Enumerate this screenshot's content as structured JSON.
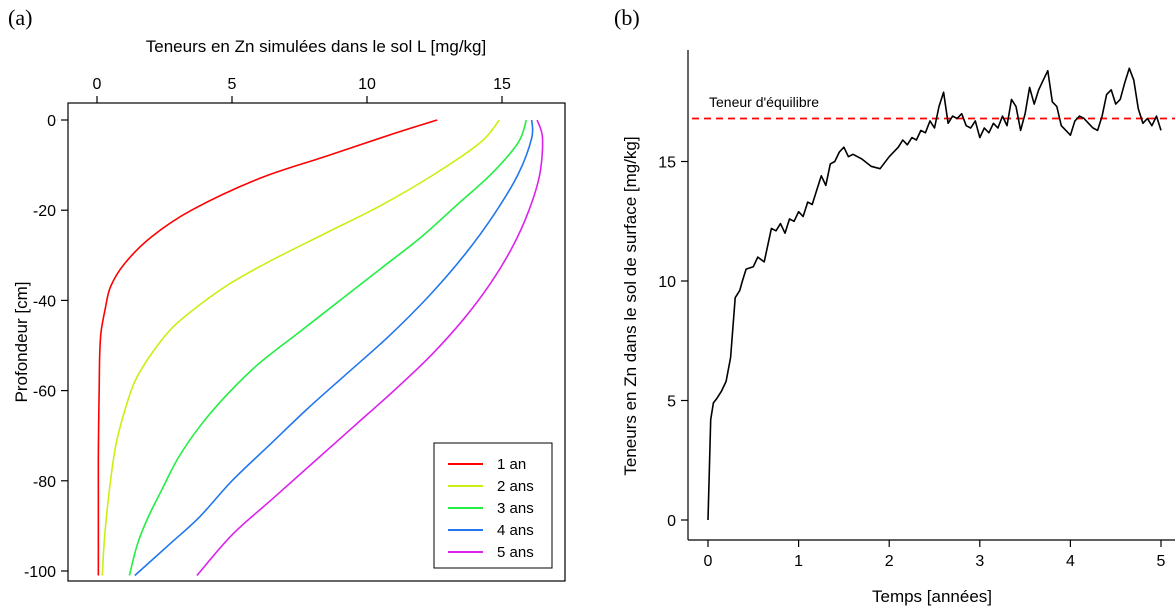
{
  "panels": {
    "a_label": "(a)",
    "b_label": "(b)"
  },
  "chart_data": [
    {
      "type": "line",
      "panel": "(a)",
      "title": "",
      "xlabel": "Teneurs en Zn simulées dans le sol L [mg/kg]",
      "ylabel": "Profondeur [cm]",
      "x_axis_position": "top",
      "xlim": [
        0,
        17.5
      ],
      "ylim": [
        -100,
        0
      ],
      "xticks": [
        0,
        5,
        10,
        15
      ],
      "yticks": [
        0,
        -20,
        -40,
        -60,
        -80,
        -100
      ],
      "legend_position": "bottom-right",
      "series": [
        {
          "name": "1 an",
          "color": "#ff0000",
          "x": [
            12.6,
            11.0,
            8.5,
            6.0,
            3.5,
            2.0,
            1.0,
            0.5,
            0.3,
            0.15,
            0.1,
            0.08,
            0.06,
            0.05,
            0.05,
            0.05,
            0.05
          ],
          "y": [
            0,
            -3,
            -8,
            -13,
            -20,
            -26,
            -32,
            -37,
            -42,
            -47,
            -52,
            -60,
            -68,
            -75,
            -82,
            -90,
            -101
          ]
        },
        {
          "name": "2 ans",
          "color": "#ccee11",
          "x": [
            14.9,
            14.2,
            12.5,
            10.5,
            8.5,
            6.5,
            5.0,
            3.8,
            2.8,
            2.0,
            1.4,
            1.0,
            0.7,
            0.5,
            0.35,
            0.25,
            0.2
          ],
          "y": [
            0,
            -5,
            -12,
            -19,
            -25,
            -31,
            -36,
            -41,
            -46,
            -52,
            -58,
            -65,
            -72,
            -80,
            -88,
            -95,
            -101
          ]
        },
        {
          "name": "3 ans",
          "color": "#22ee44",
          "x": [
            15.9,
            15.6,
            14.6,
            13.3,
            12.0,
            10.5,
            9.0,
            7.5,
            6.0,
            4.8,
            3.8,
            3.0,
            2.4,
            1.9,
            1.5,
            1.2
          ],
          "y": [
            0,
            -5,
            -12,
            -19,
            -26,
            -33,
            -40,
            -47,
            -54,
            -61,
            -68,
            -75,
            -82,
            -88,
            -94,
            -101
          ]
        },
        {
          "name": "4 ans",
          "color": "#2277ee",
          "x": [
            16.1,
            16.1,
            15.6,
            14.7,
            13.6,
            12.3,
            10.8,
            9.3,
            7.8,
            6.4,
            5.0,
            3.8,
            2.7,
            1.4
          ],
          "y": [
            0,
            -4,
            -12,
            -21,
            -30,
            -39,
            -48,
            -56,
            -64,
            -72,
            -80,
            -88,
            -94,
            -101
          ]
        },
        {
          "name": "5 ans",
          "color": "#dd22ee",
          "x": [
            16.3,
            16.5,
            16.4,
            16.0,
            15.4,
            14.6,
            13.6,
            12.4,
            11.0,
            9.5,
            8.0,
            6.5,
            5.0,
            3.7
          ],
          "y": [
            0,
            -4,
            -12,
            -20,
            -28,
            -36,
            -44,
            -52,
            -60,
            -68,
            -76,
            -84,
            -92,
            -101
          ]
        }
      ]
    },
    {
      "type": "line",
      "panel": "(b)",
      "title": "",
      "xlabel": "Temps [années]",
      "ylabel": "Teneurs en Zn dans le sol de surface [mg/kg]",
      "xlim": [
        -0.2,
        5.1
      ],
      "ylim": [
        -0.6,
        19.5
      ],
      "xticks": [
        0,
        1,
        2,
        3,
        4,
        5
      ],
      "yticks": [
        0,
        5,
        10,
        15
      ],
      "reference_line": {
        "label": "Teneur d'équilibre",
        "y": 16.8,
        "color": "#ff0000",
        "style": "dashed"
      },
      "series": [
        {
          "name": "",
          "color": "#000000",
          "x": [
            0,
            0.03,
            0.06,
            0.1,
            0.15,
            0.2,
            0.25,
            0.3,
            0.35,
            0.38,
            0.42,
            0.5,
            0.55,
            0.62,
            0.7,
            0.75,
            0.8,
            0.85,
            0.9,
            0.95,
            1.0,
            1.05,
            1.1,
            1.15,
            1.2,
            1.25,
            1.3,
            1.35,
            1.4,
            1.45,
            1.5,
            1.55,
            1.6,
            1.7,
            1.8,
            1.9,
            2.0,
            2.1,
            2.15,
            2.2,
            2.25,
            2.3,
            2.35,
            2.4,
            2.45,
            2.5,
            2.55,
            2.6,
            2.65,
            2.7,
            2.75,
            2.8,
            2.85,
            2.9,
            2.95,
            3.0,
            3.05,
            3.1,
            3.15,
            3.2,
            3.25,
            3.3,
            3.35,
            3.4,
            3.45,
            3.5,
            3.55,
            3.6,
            3.65,
            3.7,
            3.75,
            3.8,
            3.85,
            3.9,
            3.95,
            4.0,
            4.05,
            4.1,
            4.15,
            4.2,
            4.25,
            4.3,
            4.35,
            4.4,
            4.45,
            4.5,
            4.55,
            4.6,
            4.65,
            4.7,
            4.75,
            4.8,
            4.85,
            4.9,
            4.95,
            5.0
          ],
          "y": [
            0,
            4.2,
            4.9,
            5.1,
            5.4,
            5.8,
            6.8,
            9.3,
            9.6,
            10.0,
            10.5,
            10.6,
            11.0,
            10.8,
            12.2,
            12.1,
            12.4,
            12.0,
            12.6,
            12.5,
            12.9,
            12.7,
            13.3,
            13.2,
            13.8,
            14.4,
            14.0,
            14.9,
            15.0,
            15.4,
            15.6,
            15.2,
            15.3,
            15.1,
            14.8,
            14.7,
            15.2,
            15.6,
            15.9,
            15.7,
            16.0,
            15.9,
            16.3,
            16.2,
            16.7,
            16.4,
            17.3,
            17.9,
            16.6,
            16.9,
            16.8,
            17.0,
            16.5,
            16.4,
            16.7,
            16.0,
            16.4,
            16.2,
            16.6,
            16.4,
            16.9,
            16.5,
            17.6,
            17.3,
            16.3,
            17.0,
            18.1,
            17.4,
            18.0,
            18.4,
            18.8,
            17.5,
            17.3,
            16.5,
            16.3,
            16.1,
            16.7,
            16.9,
            16.8,
            16.6,
            16.4,
            16.3,
            16.9,
            17.8,
            18.0,
            17.4,
            17.6,
            18.3,
            18.9,
            18.4,
            17.2,
            16.6,
            16.8,
            16.5,
            16.9,
            16.3
          ]
        }
      ]
    }
  ]
}
